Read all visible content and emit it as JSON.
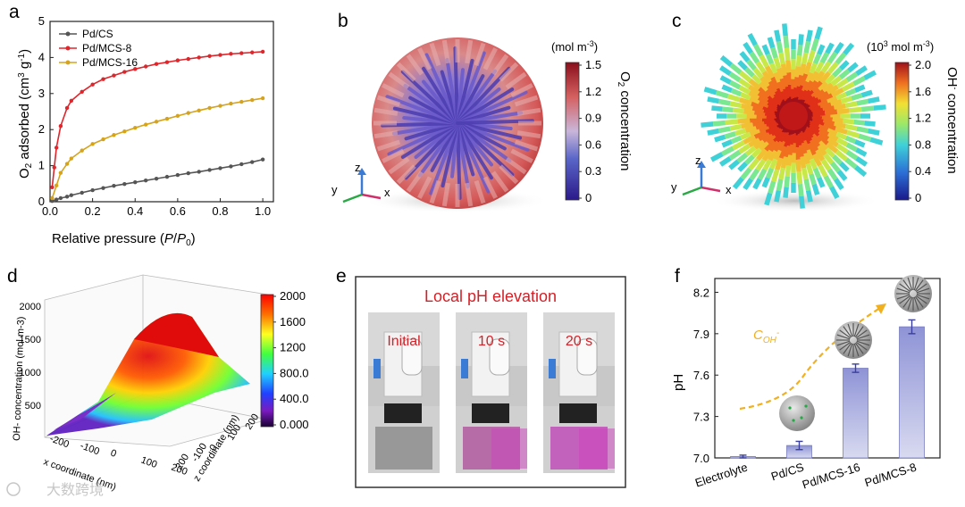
{
  "colors": {
    "cs": "#555555",
    "mcs8": "#e0252b",
    "mcs16": "#d6a41c",
    "bar": "#a9acd9",
    "barEdge": "#7a7fc0",
    "arrow": "#f0b020",
    "title_e": "#d42027",
    "photo_text": "#d42027"
  },
  "panels": {
    "a": "a",
    "b": "b",
    "c": "c",
    "d": "d",
    "e": "e",
    "f": "f"
  },
  "panel_b": {
    "unit": "(mol m",
    "unit_sup": "-3",
    "unit_end": ")",
    "cbar_title_pre": "O",
    "cbar_title_sub": "2",
    "cbar_title_post": " concentration",
    "ticks": [
      "1.5",
      "1.2",
      "0.9",
      "0.6",
      "0.3",
      "0"
    ],
    "axes": {
      "z": "z",
      "y": "y",
      "x": "x"
    }
  },
  "panel_c": {
    "unit": "(10",
    "unit_sup": "3",
    "unit_mid": " mol m",
    "unit_sup2": "-3",
    "unit_end": ")",
    "cbar_title_pre": "OH",
    "cbar_title_sup": "-",
    "cbar_title_post": " concentration",
    "ticks": [
      "2.0",
      "1.6",
      "1.2",
      "0.8",
      "0.4",
      "0"
    ],
    "axes": {
      "z": "z",
      "y": "y",
      "x": "x"
    }
  },
  "panel_d": {
    "zlabel": "OH- concentration (mol m-3)",
    "ztick_labels": [
      "500",
      "1000",
      "1500",
      "2000"
    ],
    "xlabel": "x coordinate (nm)",
    "ylabel": "z coordinate (nm)",
    "xticks": [
      "-200",
      "-100",
      "0",
      "100",
      "200"
    ],
    "yticks": [
      "-200",
      "-100",
      "0",
      "100",
      "200"
    ],
    "colorbar_ticks": [
      "2000",
      "1600",
      "1200",
      "800.0",
      "400.0",
      "0.000"
    ]
  },
  "panel_e": {
    "title": "Local pH elevation",
    "frames": [
      "Initial",
      "10 s",
      "20 s"
    ]
  },
  "watermark": "大数跨境",
  "chart_data": [
    {
      "panel": "a",
      "type": "line",
      "xlabel": "Relative pressure (P/P0)",
      "ylabel": "O2 adsorbed (cm3 g-1)",
      "xlim": [
        0,
        1.05
      ],
      "ylim": [
        0,
        5
      ],
      "xticks": [
        "0.0",
        "0.2",
        "0.4",
        "0.6",
        "0.8",
        "1.0"
      ],
      "yticks": [
        "0",
        "1",
        "2",
        "3",
        "4",
        "5"
      ],
      "series": [
        {
          "name": "Pd/CS",
          "x": [
            0.01,
            0.03,
            0.05,
            0.08,
            0.1,
            0.15,
            0.2,
            0.25,
            0.3,
            0.35,
            0.4,
            0.45,
            0.5,
            0.55,
            0.6,
            0.65,
            0.7,
            0.75,
            0.8,
            0.85,
            0.9,
            0.95,
            1.0
          ],
          "y": [
            0.02,
            0.06,
            0.1,
            0.14,
            0.18,
            0.25,
            0.32,
            0.38,
            0.44,
            0.49,
            0.54,
            0.59,
            0.64,
            0.69,
            0.74,
            0.79,
            0.83,
            0.88,
            0.93,
            0.98,
            1.04,
            1.1,
            1.17
          ]
        },
        {
          "name": "Pd/MCS-8",
          "x": [
            0.01,
            0.02,
            0.03,
            0.05,
            0.08,
            0.1,
            0.15,
            0.2,
            0.25,
            0.3,
            0.35,
            0.4,
            0.45,
            0.5,
            0.55,
            0.6,
            0.65,
            0.7,
            0.75,
            0.8,
            0.85,
            0.9,
            0.95,
            1.0
          ],
          "y": [
            0.4,
            0.95,
            1.5,
            2.1,
            2.6,
            2.8,
            3.05,
            3.25,
            3.4,
            3.5,
            3.6,
            3.68,
            3.75,
            3.82,
            3.87,
            3.92,
            3.96,
            4.0,
            4.04,
            4.07,
            4.1,
            4.12,
            4.14,
            4.16
          ]
        },
        {
          "name": "Pd/MCS-16",
          "x": [
            0.01,
            0.03,
            0.05,
            0.08,
            0.1,
            0.15,
            0.2,
            0.25,
            0.3,
            0.35,
            0.4,
            0.45,
            0.5,
            0.55,
            0.6,
            0.65,
            0.7,
            0.75,
            0.8,
            0.85,
            0.9,
            0.95,
            1.0
          ],
          "y": [
            0.1,
            0.45,
            0.8,
            1.05,
            1.2,
            1.42,
            1.6,
            1.73,
            1.85,
            1.95,
            2.05,
            2.14,
            2.22,
            2.3,
            2.38,
            2.46,
            2.53,
            2.6,
            2.66,
            2.72,
            2.77,
            2.82,
            2.87
          ]
        }
      ]
    },
    {
      "panel": "f",
      "type": "bar",
      "ylabel": "pH",
      "ylim": [
        7.0,
        8.3
      ],
      "yticks": [
        "7.0",
        "7.3",
        "7.6",
        "7.9",
        "8.2"
      ],
      "categories": [
        "Electrolyte",
        "Pd/CS",
        "Pd/MCS-16",
        "Pd/MCS-8"
      ],
      "values": [
        7.01,
        7.09,
        7.65,
        7.95
      ],
      "errors": [
        0.01,
        0.03,
        0.03,
        0.05
      ],
      "annotation": "C",
      "annotation_sub": "OH",
      "annotation_sup": "-"
    }
  ]
}
